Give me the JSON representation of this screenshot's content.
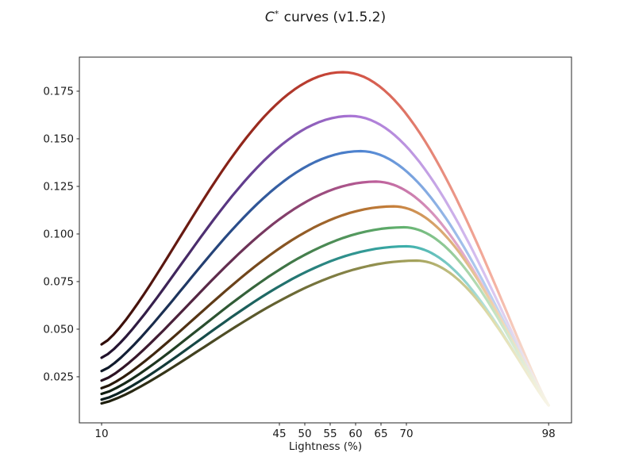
{
  "chart_data": {
    "type": "line",
    "title": "C* curves (v1.5.2)",
    "title_parts": {
      "c": "C",
      "sup": "*",
      "rest": " curves (v1.5.2)"
    },
    "xlabel": "Lightness (%)",
    "ylabel": "",
    "x_tick_values": [
      10,
      45,
      50,
      55,
      60,
      65,
      70,
      98
    ],
    "x_tick_labels": [
      "10",
      "45",
      "50",
      "55",
      "60",
      "65",
      "70",
      "98"
    ],
    "y_tick_values": [
      0.025,
      0.05,
      0.075,
      0.1,
      0.125,
      0.15,
      0.175
    ],
    "y_tick_labels": [
      "0.025",
      "0.050",
      "0.075",
      "0.100",
      "0.125",
      "0.150",
      "0.175"
    ],
    "xlim": [
      5.625,
      102.5
    ],
    "ylim": [
      0.0008,
      0.1929
    ],
    "grid": false,
    "legend": false,
    "background": "#ffffff",
    "axis_color": "#262626",
    "text_color": "#1a1a1a",
    "line_width": 3.2,
    "end_fade_color": "#f8f5e8",
    "curve_model": {
      "rise_pow": 1.3,
      "fall_pow": 1.1
    },
    "series": [
      {
        "name": "red",
        "start": [
          10,
          0.042
        ],
        "peak": [
          57.5,
          0.185
        ],
        "end": [
          98,
          0.01
        ],
        "color_dark": "#2e0c08",
        "color_mid": "#8c2318",
        "color_main": "#cf4a3c",
        "color_light": "#f4ae9e"
      },
      {
        "name": "purple",
        "start": [
          10,
          0.035
        ],
        "peak": [
          59.0,
          0.162
        ],
        "end": [
          98,
          0.01
        ],
        "color_dark": "#1f1028",
        "color_mid": "#5e3a8a",
        "color_main": "#a873d4",
        "color_light": "#d9c5f1"
      },
      {
        "name": "blue",
        "start": [
          10,
          0.028
        ],
        "peak": [
          61.0,
          0.1435
        ],
        "end": [
          98,
          0.01
        ],
        "color_dark": "#0e1624",
        "color_mid": "#2c5090",
        "color_main": "#4f85d2",
        "color_light": "#b9d0f1"
      },
      {
        "name": "pink",
        "start": [
          10,
          0.023
        ],
        "peak": [
          64.0,
          0.1275
        ],
        "end": [
          98,
          0.01
        ],
        "color_dark": "#260f1e",
        "color_mid": "#70345a",
        "color_main": "#bd5f9a",
        "color_light": "#efc3dc"
      },
      {
        "name": "orange",
        "start": [
          10,
          0.019
        ],
        "peak": [
          67.5,
          0.1145
        ],
        "end": [
          98,
          0.01
        ],
        "color_dark": "#211407",
        "color_mid": "#7a4c1e",
        "color_main": "#c67f3a",
        "color_light": "#edd1a9"
      },
      {
        "name": "green",
        "start": [
          10,
          0.016
        ],
        "peak": [
          69.5,
          0.1035
        ],
        "end": [
          98,
          0.01
        ],
        "color_dark": "#0f1c10",
        "color_mid": "#3a6c40",
        "color_main": "#62b26f",
        "color_light": "#c2e2c0"
      },
      {
        "name": "teal",
        "start": [
          10,
          0.013
        ],
        "peak": [
          70.0,
          0.0935
        ],
        "end": [
          98,
          0.01
        ],
        "color_dark": "#0a1c1c",
        "color_mid": "#1f6a66",
        "color_main": "#3cafab",
        "color_light": "#bae3dd"
      },
      {
        "name": "olive",
        "start": [
          10,
          0.011
        ],
        "peak": [
          72.0,
          0.086
        ],
        "end": [
          98,
          0.01
        ],
        "color_dark": "#1c1c0c",
        "color_mid": "#636130",
        "color_main": "#a5a35c",
        "color_light": "#dfdcaa"
      }
    ]
  }
}
